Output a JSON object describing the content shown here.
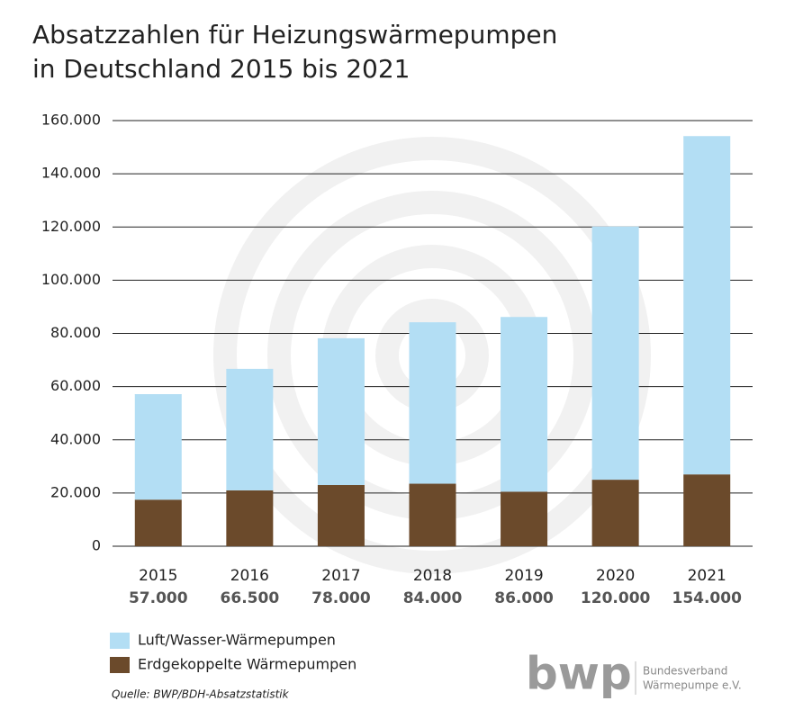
{
  "chart_data": {
    "type": "stacked_bar",
    "title": [
      "Absatzzahlen für Heizungswärmepumpen",
      "in Deutschland 2015 bis 2021"
    ],
    "categories": [
      "2015",
      "2016",
      "2017",
      "2018",
      "2019",
      "2020",
      "2021"
    ],
    "series": [
      {
        "name": "Erdgekoppelte Wärmepumpen",
        "color": "#6b4a2b",
        "values": [
          17500,
          21000,
          23000,
          23500,
          20500,
          25000,
          27000
        ]
      },
      {
        "name": "Luft/Wasser-Wärmepumpen",
        "color": "#b3def4",
        "values": [
          39500,
          45500,
          55000,
          60500,
          65500,
          95000,
          127000
        ]
      }
    ],
    "totals": {
      "values": [
        57000,
        66500,
        78000,
        84000,
        86000,
        120000,
        154000
      ],
      "value_labels": [
        "57.000",
        "66.500",
        "78.000",
        "84.000",
        "86.000",
        "120.000",
        "154.000"
      ]
    },
    "ylim": [
      0,
      160000
    ],
    "yticks": [
      0,
      {
        "value": 20000,
        "label": "20.000"
      },
      {
        "value": 40000,
        "label": "40.000"
      },
      {
        "value": 60000,
        "label": "60.000"
      },
      {
        "value": 80000,
        "label": "80.000"
      },
      {
        "value": 100000,
        "label": "100.000"
      },
      {
        "value": 120000,
        "label": "120.000"
      },
      {
        "value": 140000,
        "label": "140.000"
      },
      {
        "value": 160000,
        "label": "160.000"
      }
    ],
    "grid": true,
    "source": "Quelle: BWP/BDH-Absatzstatistik",
    "logo": {
      "mark": "bwp",
      "lines": [
        "Bundesverband",
        "Wärmepumpe e.V."
      ]
    }
  }
}
